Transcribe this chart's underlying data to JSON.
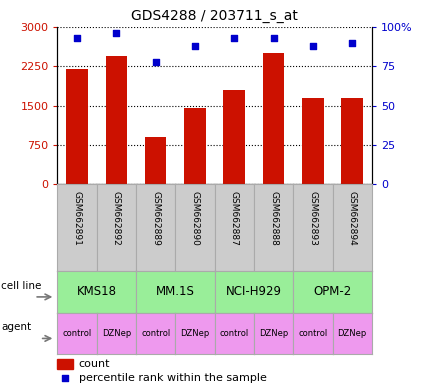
{
  "title": "GDS4288 / 203711_s_at",
  "samples": [
    "GSM662891",
    "GSM662892",
    "GSM662889",
    "GSM662890",
    "GSM662887",
    "GSM662888",
    "GSM662893",
    "GSM662894"
  ],
  "counts": [
    2200,
    2450,
    900,
    1450,
    1800,
    2500,
    1650,
    1650
  ],
  "percentile_ranks": [
    93,
    96,
    78,
    88,
    93,
    93,
    88,
    90
  ],
  "cell_lines": [
    {
      "label": "KMS18",
      "start": 0,
      "end": 2
    },
    {
      "label": "MM.1S",
      "start": 2,
      "end": 4
    },
    {
      "label": "NCI-H929",
      "start": 4,
      "end": 6
    },
    {
      "label": "OPM-2",
      "start": 6,
      "end": 8
    }
  ],
  "agents": [
    "control",
    "DZNep",
    "control",
    "DZNep",
    "control",
    "DZNep",
    "control",
    "DZNep"
  ],
  "bar_color": "#cc1100",
  "dot_color": "#0000cc",
  "cell_line_color": "#99ee99",
  "agent_color": "#ee99ee",
  "sample_bg_color": "#cccccc",
  "ylim_left": [
    0,
    3000
  ],
  "ylim_right": [
    0,
    100
  ],
  "yticks_left": [
    0,
    750,
    1500,
    2250,
    3000
  ],
  "yticks_right": [
    0,
    25,
    50,
    75,
    100
  ],
  "ytick_labels_right": [
    "0",
    "25",
    "50",
    "75",
    "100%"
  ]
}
